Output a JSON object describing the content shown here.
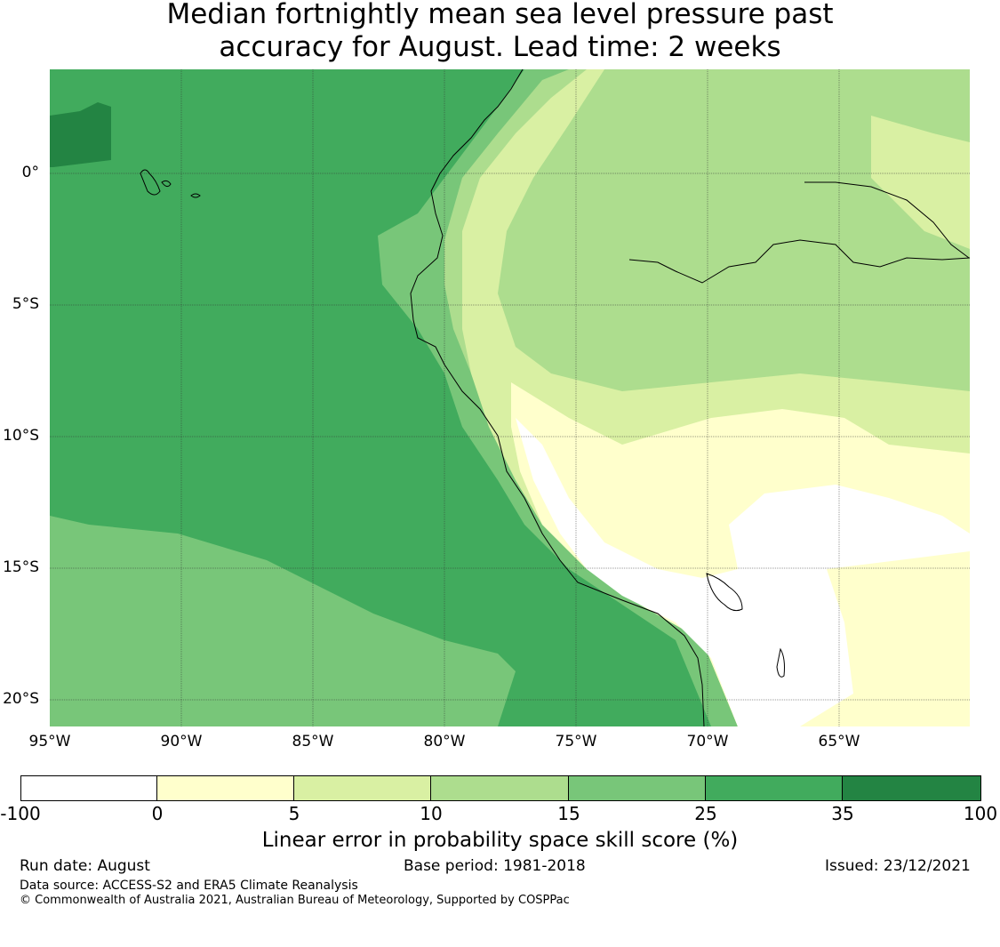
{
  "title": {
    "line1": "Median fortnightly mean sea level pressure past",
    "line2": "accuracy for August. Lead time: 2 weeks"
  },
  "map": {
    "lat_labels": [
      "0°",
      "5°S",
      "10°S",
      "15°S",
      "20°S"
    ],
    "lon_labels": [
      "95°W",
      "90°W",
      "85°W",
      "80°W",
      "75°W",
      "70°W",
      "65°W"
    ],
    "extent": {
      "lon_min": -95,
      "lon_max": -60,
      "lat_min": -21,
      "lat_max": 4
    }
  },
  "colorbar": {
    "ticks": [
      "-100",
      "0",
      "5",
      "10",
      "15",
      "25",
      "35",
      "100"
    ],
    "colors": [
      "#ffffff",
      "#ffffcc",
      "#d9f0a3",
      "#addd8e",
      "#78c679",
      "#41ab5d",
      "#238443"
    ],
    "label": "Linear error in probability space skill score (%)"
  },
  "footer": {
    "run_date": "Run date: August",
    "base_period": "Base period: 1981-2018",
    "issued": "Issued: 23/12/2021",
    "data_source": "Data source: ACCESS-S2 and ERA5 Climate Reanalysis",
    "copyright": "© Commonwealth of Australia 2021, Australian Bureau of Meteorology, Supported by COSPPac"
  }
}
